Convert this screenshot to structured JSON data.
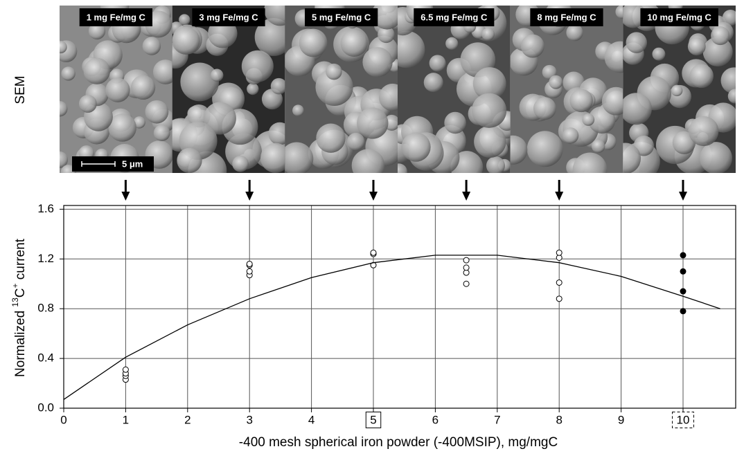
{
  "sem_panel": {
    "label": "SEM",
    "panels": [
      "1 mg Fe/mg C",
      "3 mg Fe/mg C",
      "5 mg Fe/mg C",
      "6.5 mg Fe/mg C",
      "8 mg Fe/mg C",
      "10 mg Fe/mg C"
    ],
    "scale_bar": "5 μm"
  },
  "chart_data": {
    "type": "scatter",
    "xlabel": "-400 mesh spherical iron powder (-400MSIP), mg/mgC",
    "ylabel_parts": [
      "Normalized ",
      "13",
      "C",
      "+",
      " current"
    ],
    "xlim": [
      0,
      10.85
    ],
    "ylim": [
      0,
      1.63
    ],
    "xticks": [
      0,
      1,
      2,
      3,
      4,
      5,
      6,
      7,
      8,
      9,
      10
    ],
    "yticks": [
      {
        "value": 0,
        "label": "0.0"
      },
      0.4,
      0.8,
      1.2,
      1.6
    ],
    "grid": true,
    "series": [
      {
        "type": "scatter",
        "marker": "open",
        "color": "#000000",
        "x": [
          1,
          1,
          1,
          1,
          3,
          3,
          3,
          3,
          5,
          5,
          5,
          6.5,
          6.5,
          6.5,
          6.5,
          8,
          8,
          8,
          8
        ],
        "values": [
          0.23,
          0.26,
          0.28,
          0.31,
          1.07,
          1.1,
          1.15,
          1.16,
          1.15,
          1.24,
          1.25,
          1.0,
          1.09,
          1.13,
          1.19,
          0.88,
          1.01,
          1.21,
          1.25
        ]
      },
      {
        "type": "scatter",
        "marker": "filled",
        "color": "#000000",
        "x": [
          10,
          10,
          10,
          10
        ],
        "values": [
          0.78,
          0.94,
          1.1,
          1.23
        ]
      },
      {
        "type": "line",
        "color": "#000000",
        "x": [
          0,
          1,
          2,
          3,
          4,
          5,
          6,
          7,
          8,
          9,
          10,
          10.6
        ],
        "values": [
          0.07,
          0.41,
          0.67,
          0.88,
          1.05,
          1.17,
          1.23,
          1.23,
          1.17,
          1.06,
          0.9,
          0.8
        ]
      }
    ]
  }
}
